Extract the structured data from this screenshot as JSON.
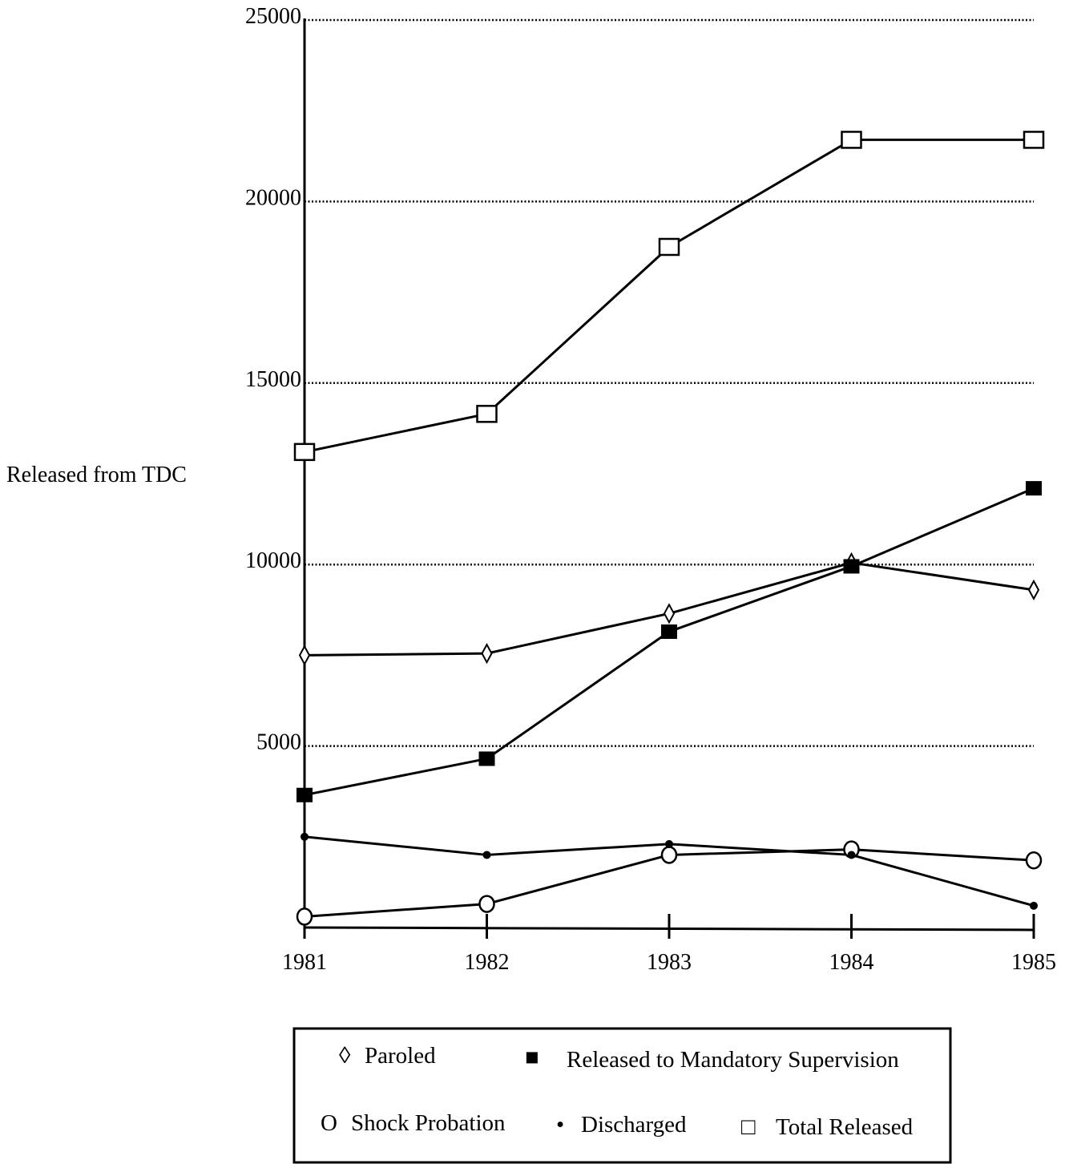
{
  "chart_data": {
    "type": "line",
    "ylabel": "Released from TDC",
    "xlabel": "",
    "x": [
      "1981",
      "1982",
      "1983",
      "1984",
      "1985"
    ],
    "ylim": [
      0,
      25000
    ],
    "yticks": [
      "5000",
      "10000",
      "15000",
      "20000",
      "25000"
    ],
    "grid": "horizontal dotted",
    "legend_position": "bottom",
    "series": [
      {
        "name": "Paroled",
        "marker": "diamond-open",
        "values": [
          7500,
          7550,
          8650,
          10050,
          9300
        ]
      },
      {
        "name": "Released to Mandatory Supervision",
        "marker": "square-filled",
        "values": [
          3650,
          4650,
          8150,
          9950,
          12100
        ]
      },
      {
        "name": "Shock Probation",
        "marker": "circle-open",
        "values": [
          300,
          650,
          2000,
          2150,
          1850
        ]
      },
      {
        "name": "Discharged",
        "marker": "dot-filled",
        "values": [
          2500,
          2000,
          2300,
          2000,
          600
        ]
      },
      {
        "name": "Total Released",
        "marker": "square-open",
        "values": [
          13100,
          14150,
          18750,
          21700,
          21700
        ]
      }
    ],
    "legend": {
      "row1": [
        {
          "symbol": "◊",
          "label": "Paroled"
        },
        {
          "symbol": "■",
          "label": "Released to Mandatory Supervision"
        }
      ],
      "row2": [
        {
          "symbol": "O",
          "label": "Shock Probation"
        },
        {
          "symbol": "•",
          "label": "Discharged"
        },
        {
          "symbol": "□",
          "label": "Total Released"
        }
      ]
    }
  }
}
